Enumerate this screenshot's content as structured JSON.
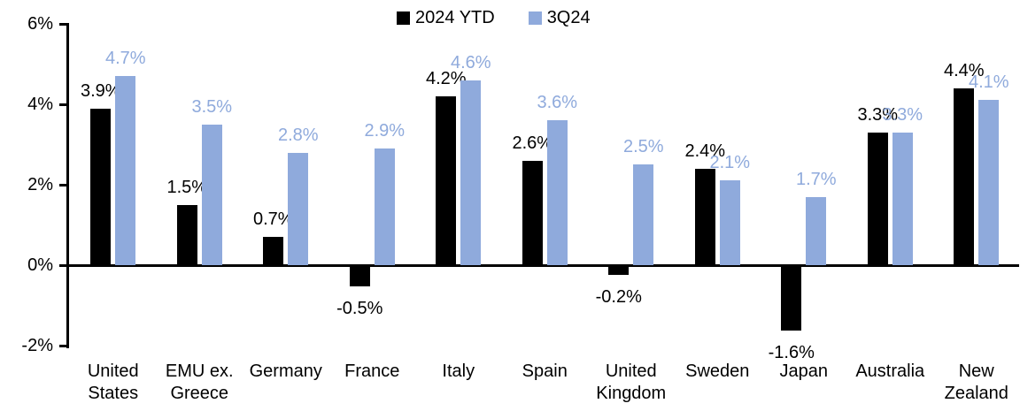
{
  "legend": [
    {
      "label": "2024 YTD",
      "color": "#000000"
    },
    {
      "label": "3Q24",
      "color": "#8FAADC"
    }
  ],
  "y_axis": {
    "ticks": [
      "6%",
      "4%",
      "2%",
      "0%",
      "-2%"
    ],
    "values": [
      6,
      4,
      2,
      0,
      -2
    ]
  },
  "chart_data": {
    "type": "bar",
    "title": "",
    "xlabel": "",
    "ylabel": "",
    "ylim": [
      -2,
      6
    ],
    "grid": false,
    "legend_position": "top-center",
    "categories": [
      "United\nStates",
      "EMU ex.\nGreece",
      "Germany",
      "France",
      "Italy",
      "Spain",
      "United\nKingdom",
      "Sweden",
      "Japan",
      "Australia",
      "New\nZealand"
    ],
    "series": [
      {
        "name": "2024 YTD",
        "color": "#000000",
        "values": [
          3.9,
          1.5,
          0.7,
          -0.5,
          4.2,
          2.6,
          -0.2,
          2.4,
          -1.6,
          3.3,
          4.4
        ],
        "labels": [
          "3.9%",
          "1.5%",
          "0.7%",
          "-0.5%",
          "4.2%",
          "2.6%",
          "-0.2%",
          "2.4%",
          "-1.6%",
          "3.3%",
          "4.4%"
        ]
      },
      {
        "name": "3Q24",
        "color": "#8FAADC",
        "values": [
          4.7,
          3.5,
          2.8,
          2.9,
          4.6,
          3.6,
          2.5,
          2.1,
          1.7,
          3.3,
          4.1
        ],
        "labels": [
          "4.7%",
          "3.5%",
          "2.8%",
          "2.9%",
          "4.6%",
          "3.6%",
          "2.5%",
          "2.1%",
          "1.7%",
          "3.3%",
          "4.1%"
        ]
      }
    ]
  }
}
